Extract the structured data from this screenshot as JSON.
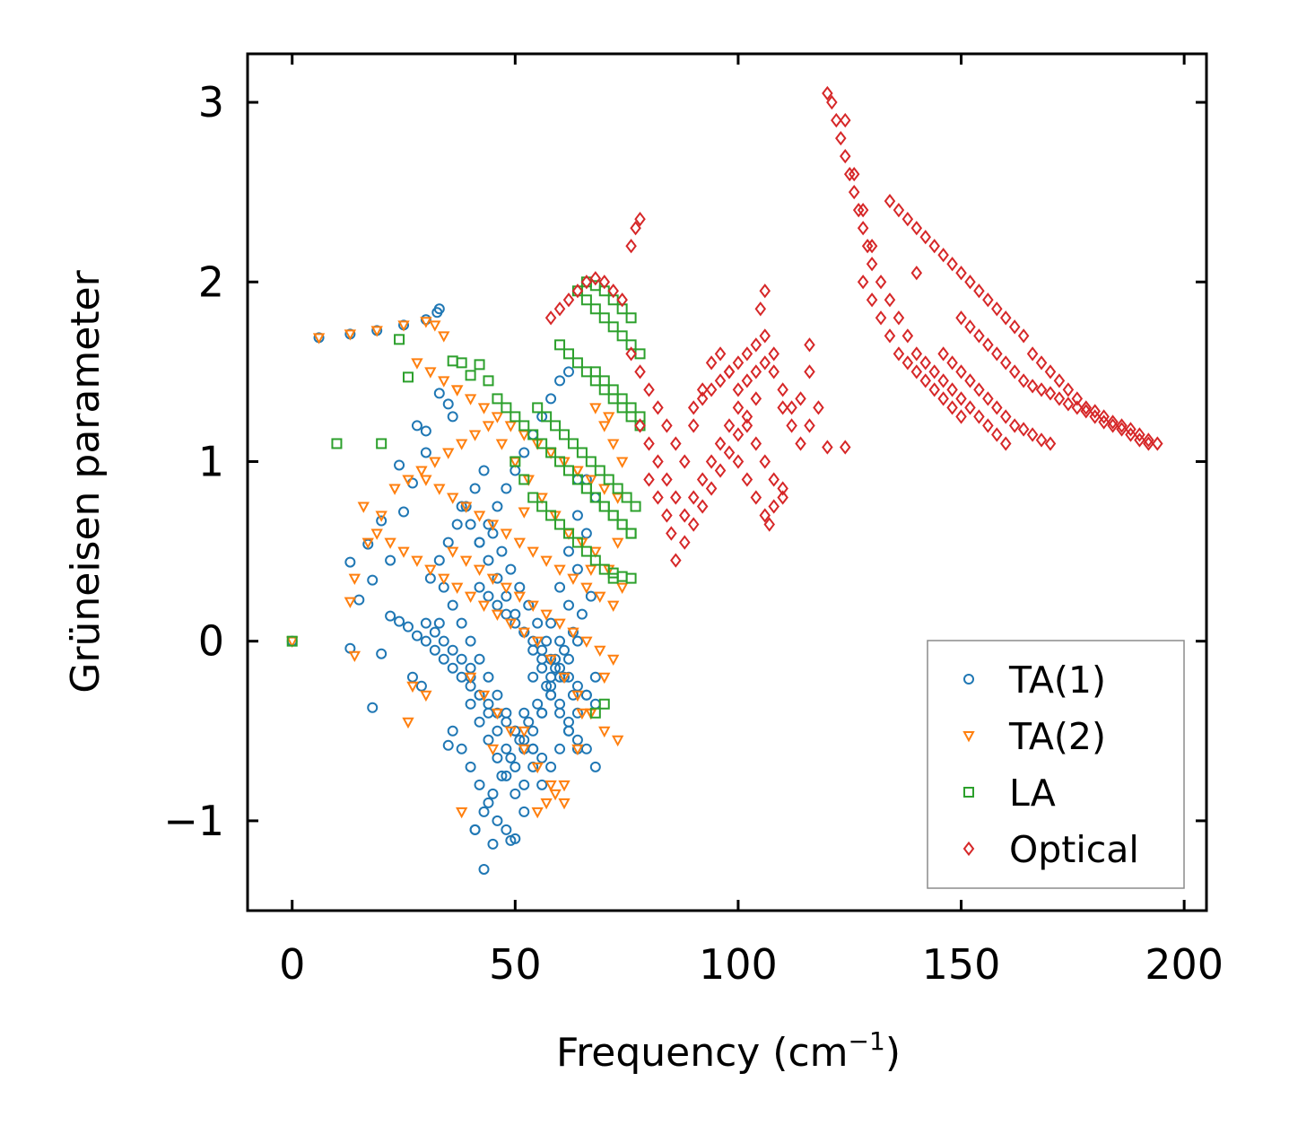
{
  "chart_data": {
    "type": "scatter",
    "title": "",
    "xlabel": {
      "text": "Frequency (cm",
      "sup": "−1",
      "close": ")"
    },
    "ylabel": "Grüneisen parameter",
    "xlim": [
      -10,
      205
    ],
    "ylim": [
      -1.5,
      3.27
    ],
    "xticks": [
      0,
      50,
      100,
      150,
      200
    ],
    "xtick_labels": [
      "0",
      "50",
      "100",
      "150",
      "200"
    ],
    "yticks": [
      -1,
      0,
      1,
      2,
      3
    ],
    "ytick_labels": [
      "−1",
      "0",
      "1",
      "2",
      "3"
    ],
    "grid": false,
    "legend_position": "lower-right",
    "series": [
      {
        "name": "TA(1)",
        "marker": "circle",
        "color": "#1f77b4",
        "x": [
          0,
          6,
          13,
          19,
          25,
          30,
          32.5,
          33,
          13,
          15,
          17,
          18,
          20,
          22,
          24,
          25,
          27,
          28,
          30,
          33,
          35,
          36,
          38,
          40,
          42,
          44,
          46,
          48,
          50,
          52,
          54,
          56,
          58,
          60,
          62,
          64,
          66,
          68,
          34,
          36,
          38,
          40,
          42,
          44,
          46,
          48,
          50,
          52,
          54,
          56,
          58,
          60,
          62,
          64,
          66,
          68,
          40,
          42,
          44,
          46,
          48,
          50,
          52,
          54,
          56,
          58,
          60,
          62,
          64,
          66,
          36,
          38,
          40,
          42,
          44,
          46,
          48,
          50,
          52,
          54,
          56,
          58,
          60,
          62,
          64,
          66,
          68,
          41,
          43,
          45,
          47,
          49,
          51,
          53,
          55,
          57,
          59,
          61,
          63,
          65,
          67,
          40,
          42,
          44,
          46,
          48,
          50,
          52,
          54,
          56,
          58,
          60,
          62,
          64,
          66,
          68,
          42,
          44,
          46,
          48,
          50,
          52,
          54,
          56,
          58,
          60,
          62,
          64,
          22,
          24,
          26,
          28,
          30,
          32,
          34,
          36,
          38,
          40,
          42,
          44,
          46,
          48,
          50,
          52,
          54,
          56,
          58,
          60,
          62,
          64,
          27,
          29,
          31,
          33,
          35,
          37,
          39,
          41,
          43,
          45,
          47,
          49,
          51,
          53,
          55,
          57,
          59,
          61,
          63,
          30,
          32,
          34,
          36,
          38,
          40,
          42,
          44,
          46,
          48,
          50,
          52,
          54,
          56,
          58,
          60,
          62,
          64,
          13,
          20,
          18,
          30,
          33,
          45,
          49,
          43,
          35,
          41
        ],
        "y": [
          0,
          1.69,
          1.71,
          1.73,
          1.76,
          1.79,
          1.83,
          1.85,
          0.44,
          0.23,
          0.54,
          0.34,
          0.67,
          0.45,
          0.98,
          0.72,
          0.88,
          1.2,
          1.05,
          1.38,
          1.32,
          1.25,
          0.75,
          0.65,
          0.55,
          0.45,
          0.35,
          0.25,
          0.15,
          0.05,
          -0.05,
          -0.15,
          -0.25,
          -0.35,
          -0.45,
          -0.55,
          -0.6,
          -0.7,
          0.3,
          0.2,
          0.1,
          0.0,
          -0.1,
          -0.2,
          -0.3,
          -0.4,
          -0.5,
          -0.6,
          -0.7,
          -0.8,
          -0.3,
          -0.4,
          -0.5,
          -0.6,
          -0.3,
          -0.35,
          -0.2,
          -0.3,
          -0.4,
          -0.5,
          -0.6,
          -0.7,
          -0.4,
          -0.2,
          -0.1,
          0.1,
          0.3,
          0.5,
          0.7,
          0.9,
          -0.5,
          -0.6,
          -0.7,
          -0.8,
          -0.9,
          -1.0,
          -1.05,
          -1.1,
          -0.8,
          -0.6,
          -0.4,
          -0.2,
          0.0,
          0.2,
          0.4,
          0.6,
          0.8,
          -1.05,
          -0.95,
          -0.85,
          -0.75,
          -0.65,
          -0.55,
          -0.45,
          -0.35,
          -0.25,
          -0.15,
          -0.05,
          0.05,
          0.15,
          0.25,
          -0.35,
          -0.45,
          -0.55,
          -0.65,
          -0.75,
          -0.85,
          -0.95,
          -0.5,
          -0.4,
          -0.3,
          -0.2,
          -0.1,
          0.0,
          -0.3,
          -0.2,
          0.55,
          0.65,
          0.75,
          0.85,
          0.95,
          1.05,
          1.15,
          1.25,
          1.35,
          1.45,
          1.5,
          0.9,
          0.14,
          0.11,
          0.08,
          0.03,
          0.0,
          -0.05,
          -0.1,
          -0.15,
          -0.2,
          -0.25,
          -0.3,
          -0.35,
          -0.4,
          -0.45,
          -0.5,
          -0.55,
          -0.6,
          -0.65,
          -0.7,
          -0.6,
          -0.5,
          -0.4,
          -0.2,
          -0.25,
          0.35,
          0.45,
          0.55,
          0.65,
          0.75,
          0.85,
          0.95,
          0.6,
          0.5,
          0.4,
          0.3,
          0.2,
          0.1,
          0.0,
          -0.1,
          -0.2,
          -0.3,
          0.1,
          0.05,
          0.0,
          -0.05,
          -0.1,
          -0.15,
          0.3,
          0.25,
          0.2,
          0.15,
          0.1,
          0.05,
          0.0,
          -0.05,
          -0.1,
          -0.15,
          -0.2,
          -0.25,
          -0.04,
          -0.07,
          -0.37,
          1.17,
          0.1,
          -1.13,
          -1.11,
          -1.27,
          -0.58,
          -1.05
        ]
      },
      {
        "name": "TA(2)",
        "marker": "triangle-down",
        "color": "#ff7f0e",
        "x": [
          0,
          6,
          13,
          19,
          25,
          30,
          32,
          34,
          13,
          16,
          19,
          22,
          25,
          28,
          31,
          34,
          37,
          40,
          43,
          46,
          49,
          52,
          55,
          58,
          61,
          64,
          67,
          70,
          73,
          14,
          17,
          20,
          23,
          26,
          29,
          32,
          35,
          38,
          41,
          44,
          47,
          50,
          53,
          56,
          59,
          62,
          65,
          68,
          71,
          74,
          28,
          31,
          34,
          37,
          40,
          43,
          46,
          49,
          52,
          55,
          58,
          61,
          64,
          67,
          70,
          73,
          30,
          33,
          36,
          39,
          42,
          45,
          48,
          51,
          54,
          57,
          60,
          63,
          66,
          69,
          72,
          36,
          39,
          42,
          45,
          48,
          51,
          54,
          57,
          60,
          63,
          66,
          69,
          72,
          40,
          43,
          46,
          49,
          52,
          55,
          58,
          61,
          64,
          67,
          70,
          27,
          30,
          38,
          45,
          52,
          55,
          57,
          59,
          61,
          65,
          68,
          70,
          72,
          74,
          14,
          26,
          37,
          52,
          64,
          67,
          71,
          73
        ],
        "y": [
          0,
          1.69,
          1.71,
          1.73,
          1.76,
          1.78,
          1.76,
          1.7,
          0.22,
          0.75,
          0.6,
          0.55,
          0.5,
          0.45,
          0.4,
          0.35,
          0.3,
          0.25,
          0.2,
          0.15,
          0.1,
          0.05,
          0.0,
          -0.1,
          -0.2,
          -0.3,
          -0.4,
          -0.5,
          -0.55,
          0.35,
          0.55,
          0.7,
          0.85,
          0.9,
          0.95,
          1.0,
          1.05,
          1.1,
          1.15,
          1.2,
          1.1,
          1.0,
          0.9,
          0.8,
          0.7,
          0.6,
          0.55,
          0.5,
          0.4,
          0.3,
          1.55,
          1.5,
          1.45,
          1.4,
          1.35,
          1.3,
          1.25,
          1.2,
          1.15,
          1.1,
          1.05,
          1.0,
          0.95,
          0.9,
          0.85,
          0.8,
          0.9,
          0.85,
          0.8,
          0.75,
          0.7,
          0.65,
          0.6,
          0.55,
          0.5,
          0.45,
          0.4,
          0.35,
          0.3,
          0.25,
          0.2,
          0.5,
          0.45,
          0.4,
          0.35,
          0.3,
          0.25,
          0.2,
          0.15,
          0.1,
          0.05,
          0.0,
          -0.05,
          -0.1,
          -0.2,
          -0.3,
          -0.4,
          -0.5,
          -0.6,
          -0.7,
          -0.8,
          -0.9,
          -0.6,
          -0.4,
          -0.2,
          -0.25,
          -0.3,
          -0.95,
          -0.6,
          -0.5,
          -0.95,
          -0.9,
          -0.85,
          -0.8,
          -0.4,
          1.3,
          1.2,
          1.1,
          1.0,
          -0.08,
          -0.45,
          1.4,
          0.72,
          0.95,
          0.4,
          1.25,
          0.55
        ]
      },
      {
        "name": "LA",
        "marker": "square",
        "color": "#2ca02c",
        "x": [
          0,
          10,
          20,
          24,
          26,
          36,
          38,
          40,
          42,
          44,
          46,
          48,
          50,
          52,
          54,
          56,
          58,
          60,
          62,
          64,
          66,
          68,
          70,
          72,
          74,
          76,
          50,
          52,
          54,
          56,
          58,
          60,
          62,
          64,
          66,
          68,
          70,
          72,
          74,
          76,
          55,
          57,
          59,
          61,
          63,
          65,
          67,
          69,
          71,
          73,
          75,
          77,
          60,
          62,
          64,
          66,
          68,
          70,
          72,
          74,
          76,
          78,
          64,
          66,
          68,
          70,
          72,
          74,
          76,
          78,
          66,
          68,
          70,
          72,
          74,
          76,
          68,
          70,
          72,
          74,
          76,
          78,
          62,
          64,
          66,
          68,
          70,
          72,
          74,
          76,
          68,
          70,
          72
        ],
        "y": [
          0,
          1.1,
          1.1,
          1.68,
          1.47,
          1.56,
          1.55,
          1.48,
          1.54,
          1.45,
          1.35,
          1.3,
          1.25,
          1.2,
          1.15,
          1.1,
          1.05,
          1.0,
          0.95,
          0.9,
          0.85,
          0.8,
          0.75,
          0.7,
          0.65,
          0.6,
          1.0,
          0.9,
          0.8,
          0.75,
          0.7,
          0.65,
          0.6,
          0.55,
          0.5,
          0.45,
          0.4,
          0.38,
          0.36,
          0.35,
          1.3,
          1.25,
          1.2,
          1.15,
          1.1,
          1.05,
          1.0,
          0.95,
          0.9,
          0.85,
          0.8,
          0.75,
          1.65,
          1.6,
          1.55,
          1.5,
          1.45,
          1.4,
          1.35,
          1.3,
          1.25,
          1.2,
          1.95,
          1.9,
          1.85,
          1.8,
          1.75,
          1.7,
          1.65,
          1.6,
          2.0,
          1.98,
          1.95,
          1.9,
          1.85,
          1.8,
          1.5,
          1.45,
          1.4,
          1.35,
          1.3,
          1.25,
          0.95,
          0.9,
          0.85,
          0.8,
          0.75,
          0.7,
          0.65,
          0.6,
          -0.4,
          -0.35,
          0.35
        ]
      },
      {
        "name": "Optical",
        "marker": "diamond",
        "color": "#d62728",
        "x": [
          58,
          60,
          62,
          64,
          66,
          68,
          70,
          72,
          74,
          76,
          77,
          78,
          76,
          78,
          80,
          82,
          84,
          86,
          88,
          90,
          92,
          94,
          96,
          98,
          100,
          102,
          104,
          106,
          108,
          110,
          112,
          114,
          116,
          78,
          80,
          82,
          84,
          86,
          88,
          90,
          92,
          94,
          96,
          98,
          100,
          102,
          104,
          106,
          108,
          110,
          80,
          82,
          84,
          85,
          86,
          88,
          90,
          92,
          94,
          96,
          98,
          100,
          102,
          104,
          90,
          92,
          94,
          96,
          98,
          100,
          102,
          104,
          106,
          108,
          110,
          112,
          114,
          116,
          118,
          100,
          102,
          104,
          106,
          107,
          108,
          110,
          120,
          121,
          122,
          123,
          124,
          125,
          126,
          127,
          128,
          129,
          130,
          124,
          126,
          128,
          130,
          132,
          134,
          136,
          138,
          140,
          142,
          144,
          146,
          148,
          150,
          152,
          154,
          156,
          158,
          160,
          134,
          136,
          138,
          140,
          142,
          144,
          146,
          148,
          150,
          152,
          154,
          156,
          158,
          160,
          162,
          164,
          166,
          168,
          170,
          172,
          174,
          176,
          178,
          180,
          182,
          184,
          186,
          188,
          190,
          192,
          194,
          150,
          152,
          154,
          156,
          158,
          160,
          162,
          164,
          166,
          168,
          170,
          172,
          174,
          176,
          178,
          180,
          182,
          184,
          186,
          188,
          190,
          192,
          146,
          148,
          150,
          152,
          154,
          156,
          158,
          160,
          162,
          164,
          166,
          168,
          170,
          128,
          130,
          132,
          134,
          136,
          138,
          140,
          142,
          144,
          146,
          148,
          150,
          120,
          124,
          106,
          116,
          105,
          140
        ],
        "y": [
          1.8,
          1.85,
          1.9,
          1.95,
          2.0,
          2.02,
          2.0,
          1.95,
          1.9,
          2.2,
          2.3,
          2.35,
          1.6,
          1.5,
          1.4,
          1.3,
          1.2,
          1.1,
          1.0,
          1.2,
          1.4,
          1.55,
          1.6,
          1.5,
          1.4,
          1.45,
          1.5,
          1.55,
          1.6,
          1.4,
          1.3,
          1.35,
          1.5,
          1.2,
          1.1,
          1.0,
          0.9,
          0.8,
          0.7,
          0.8,
          0.9,
          1.0,
          1.1,
          1.2,
          1.3,
          1.2,
          1.1,
          1.0,
          0.9,
          0.8,
          0.9,
          0.8,
          0.7,
          0.6,
          0.45,
          0.55,
          0.65,
          0.75,
          0.85,
          0.95,
          1.05,
          1.15,
          1.25,
          1.35,
          1.3,
          1.35,
          1.4,
          1.45,
          1.5,
          1.55,
          1.6,
          1.65,
          1.7,
          1.5,
          1.3,
          1.2,
          1.1,
          1.2,
          1.3,
          1.0,
          0.9,
          0.8,
          0.7,
          0.65,
          0.75,
          0.85,
          3.05,
          3.0,
          2.9,
          2.8,
          2.7,
          2.6,
          2.5,
          2.4,
          2.3,
          2.2,
          2.1,
          2.9,
          2.6,
          2.4,
          2.2,
          2.0,
          1.9,
          1.8,
          1.7,
          1.6,
          1.55,
          1.5,
          1.45,
          1.4,
          1.35,
          1.3,
          1.25,
          1.2,
          1.15,
          1.1,
          2.45,
          2.4,
          2.35,
          2.3,
          2.25,
          2.2,
          2.15,
          2.1,
          2.05,
          2.0,
          1.95,
          1.9,
          1.85,
          1.8,
          1.75,
          1.7,
          1.6,
          1.55,
          1.5,
          1.45,
          1.4,
          1.35,
          1.3,
          1.28,
          1.25,
          1.22,
          1.2,
          1.18,
          1.15,
          1.12,
          1.1,
          1.8,
          1.75,
          1.7,
          1.65,
          1.6,
          1.55,
          1.5,
          1.45,
          1.42,
          1.4,
          1.38,
          1.35,
          1.32,
          1.3,
          1.28,
          1.25,
          1.22,
          1.2,
          1.18,
          1.15,
          1.12,
          1.1,
          1.6,
          1.55,
          1.5,
          1.45,
          1.4,
          1.35,
          1.3,
          1.25,
          1.2,
          1.18,
          1.15,
          1.12,
          1.1,
          2.0,
          1.9,
          1.8,
          1.7,
          1.6,
          1.55,
          1.5,
          1.45,
          1.4,
          1.35,
          1.3,
          1.25,
          1.08,
          1.08,
          1.95,
          1.65,
          1.85,
          2.05
        ]
      }
    ]
  }
}
